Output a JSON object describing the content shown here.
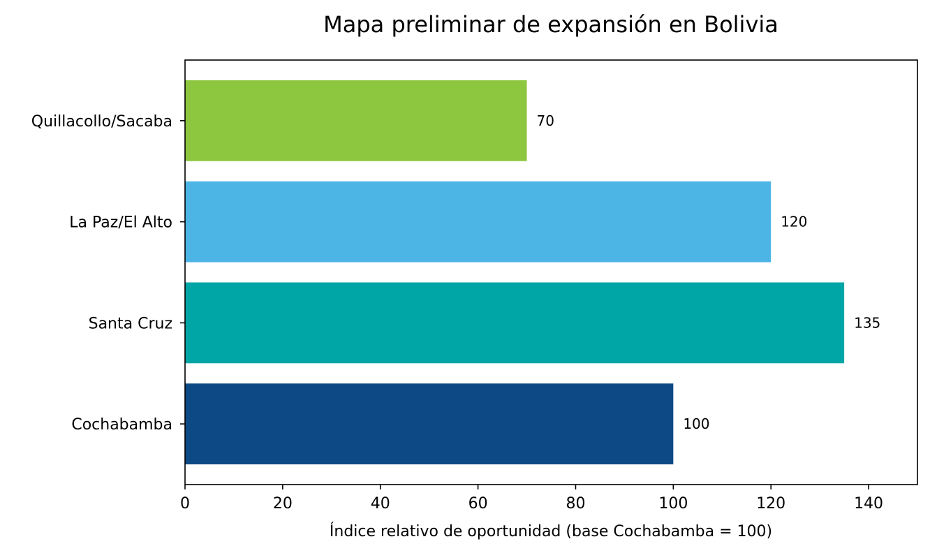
{
  "chart_data": {
    "type": "bar",
    "orientation": "horizontal",
    "title": "Mapa preliminar de expansión en Bolivia",
    "xlabel": "Índice relativo de oportunidad (base Cochabamba = 100)",
    "ylabel": "",
    "categories": [
      "Cochabamba",
      "Santa Cruz",
      "La Paz/El Alto",
      "Quillacollo/Sacaba"
    ],
    "values": [
      100,
      135,
      120,
      70
    ],
    "value_labels": [
      "100",
      "135",
      "120",
      "70"
    ],
    "colors": [
      "#0d4a85",
      "#00a6a6",
      "#4db5e6",
      "#8dc63f"
    ],
    "xlim": [
      0,
      150
    ],
    "xticks": [
      0,
      20,
      40,
      60,
      80,
      100,
      120,
      140
    ],
    "xtick_labels": [
      "0",
      "20",
      "40",
      "60",
      "80",
      "100",
      "120",
      "140"
    ],
    "grid": false,
    "legend": "none"
  }
}
